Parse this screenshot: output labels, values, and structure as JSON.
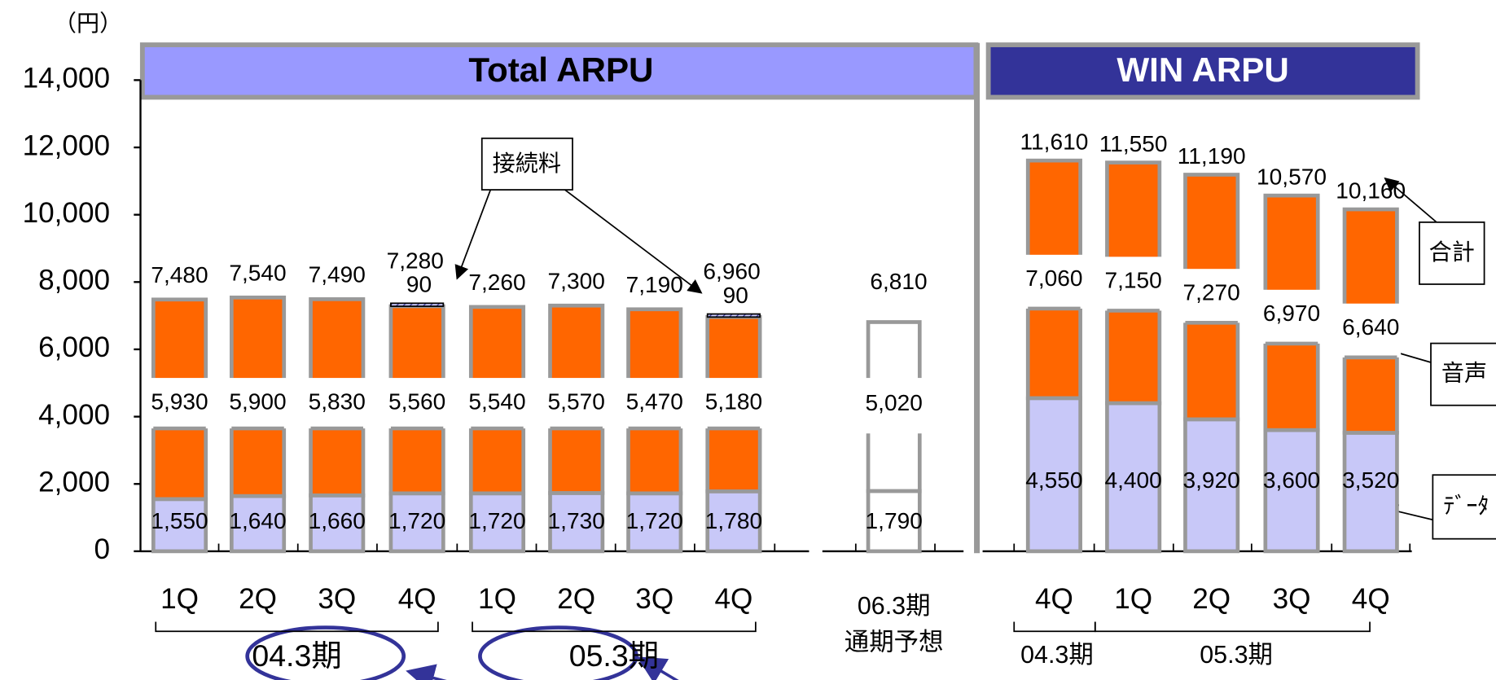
{
  "chart_data": [
    {
      "type": "bar",
      "title": "Total ARPU",
      "y_unit": "（円）",
      "ylim": [
        0,
        14000
      ],
      "yticks": [
        0,
        {
          "value": 2000,
          "label": "2,000"
        },
        {
          "value": 4000,
          "label": "4,000"
        },
        {
          "value": 6000,
          "label": "6,000"
        },
        {
          "value": 8000,
          "label": "8,000"
        },
        {
          "value": 10000,
          "label": "10,000"
        },
        {
          "value": 12000,
          "label": "12,000"
        },
        {
          "value": 14000,
          "label": "14,000"
        }
      ],
      "categories": [
        "1Q",
        "2Q",
        "3Q",
        "4Q",
        "1Q",
        "2Q",
        "3Q",
        "4Q"
      ],
      "groups": [
        "04.3期",
        "05.3期"
      ],
      "series": [
        {
          "name": "ﾃﾞｰﾀ",
          "color": "#c8c8f8",
          "values": [
            1550,
            1640,
            1660,
            1720,
            1720,
            1730,
            1720,
            1780
          ],
          "value_labels": [
            "1,550",
            "1,640",
            "1,660",
            "1,720",
            "1,720",
            "1,730",
            "1,720",
            "1,780"
          ]
        },
        {
          "name": "音声",
          "color": "#ff6600",
          "values": [
            5930,
            5900,
            5830,
            5560,
            5540,
            5570,
            5470,
            5180
          ],
          "value_labels": [
            "5,930",
            "5,900",
            "5,830",
            "5,560",
            "5,540",
            "5,570",
            "5,470",
            "5,180"
          ]
        },
        {
          "name": "接続料",
          "color": "#6666cc",
          "values": [
            null,
            null,
            null,
            90,
            null,
            null,
            null,
            90
          ]
        }
      ],
      "totals": {
        "name": "合計",
        "values": [
          7480,
          7540,
          7490,
          7280,
          7260,
          7300,
          7190,
          6960
        ],
        "value_labels": [
          "7,480",
          "7,540",
          "7,490",
          "7,280",
          "7,260",
          "7,300",
          "7,190",
          "6,960"
        ]
      },
      "forecast": {
        "label": [
          "06.3期",
          "通期予想"
        ],
        "values": {
          "data": 1790,
          "voice": 5020,
          "total": 6810
        },
        "value_labels": {
          "data": "1,790",
          "voice": "5,020",
          "total": "6,810"
        }
      }
    },
    {
      "type": "bar",
      "title": "WIN ARPU",
      "categories": [
        "4Q",
        "1Q",
        "2Q",
        "3Q",
        "4Q"
      ],
      "groups": [
        "04.3期",
        "05.3期"
      ],
      "series": [
        {
          "name": "ﾃﾞｰﾀ",
          "color": "#c8c8f8",
          "values": [
            4550,
            4400,
            3920,
            3600,
            3520
          ],
          "value_labels": [
            "4,550",
            "4,400",
            "3,920",
            "3,600",
            "3,520"
          ]
        },
        {
          "name": "音声",
          "color": "#ff6600",
          "values": [
            7060,
            7150,
            7270,
            6970,
            6640
          ],
          "value_labels": [
            "7,060",
            "7,150",
            "7,270",
            "6,970",
            "6,640"
          ]
        }
      ],
      "totals": {
        "name": "合計",
        "values": [
          11610,
          11550,
          11190,
          10570,
          10160
        ],
        "value_labels": [
          "11,610",
          "11,550",
          "11,190",
          "10,570",
          "10,160"
        ]
      }
    }
  ]
}
